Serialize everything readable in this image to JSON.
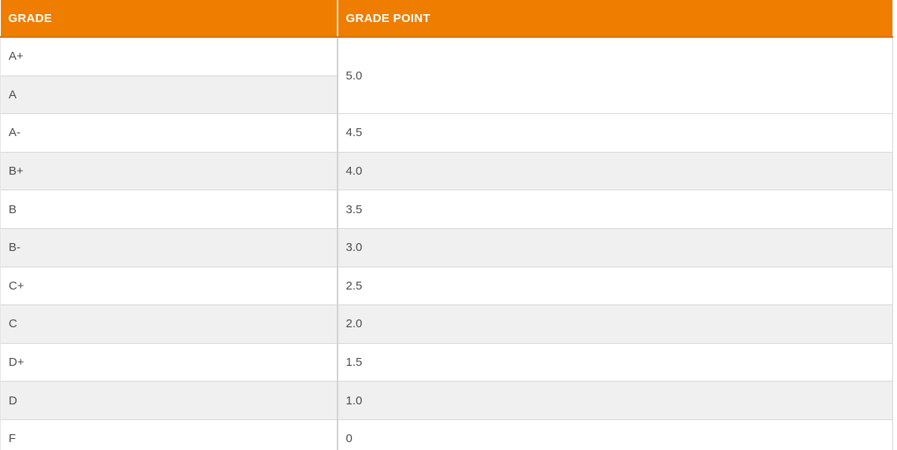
{
  "colors": {
    "header_bg": "#ee7d00",
    "header_border_bottom": "#dd6e00",
    "header_text": "#ffffff",
    "row_bg": "#ffffff",
    "row_alt_bg": "#f0f0f0",
    "cell_border": "#d7d7d7",
    "column_divider": "#d2d2d2",
    "body_text": "#4c4c4c"
  },
  "table": {
    "headers": [
      {
        "label": "GRADE"
      },
      {
        "label": "GRADE POINT"
      }
    ],
    "rows": [
      {
        "grade": "A+",
        "point": "5.0"
      },
      {
        "grade": "A"
      },
      {
        "grade": "A-",
        "point": "4.5"
      },
      {
        "grade": "B+",
        "point": "4.0"
      },
      {
        "grade": "B",
        "point": "3.5"
      },
      {
        "grade": "B-",
        "point": "3.0"
      },
      {
        "grade": "C+",
        "point": "2.5"
      },
      {
        "grade": "C",
        "point": "2.0"
      },
      {
        "grade": "D+",
        "point": "1.5"
      },
      {
        "grade": "D",
        "point": "1.0"
      },
      {
        "grade": "F",
        "point": "0"
      }
    ]
  }
}
